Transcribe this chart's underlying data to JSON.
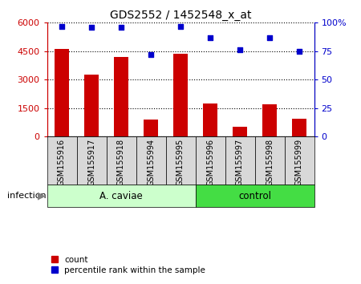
{
  "title": "GDS2552 / 1452548_x_at",
  "samples": [
    "GSM155916",
    "GSM155917",
    "GSM155918",
    "GSM155994",
    "GSM155995",
    "GSM155996",
    "GSM155997",
    "GSM155998",
    "GSM155999"
  ],
  "counts": [
    4600,
    3250,
    4200,
    900,
    4350,
    1750,
    500,
    1700,
    950
  ],
  "percentile_ranks": [
    97,
    96,
    96,
    72,
    97,
    87,
    76,
    87,
    75
  ],
  "bar_color": "#cc0000",
  "dot_color": "#0000cc",
  "left_ylim": [
    0,
    6000
  ],
  "right_ylim": [
    0,
    100
  ],
  "left_yticks": [
    0,
    1500,
    3000,
    4500,
    6000
  ],
  "right_yticks": [
    0,
    25,
    50,
    75,
    100
  ],
  "left_yticklabels": [
    "0",
    "1500",
    "3000",
    "4500",
    "6000"
  ],
  "right_yticklabels": [
    "0",
    "25",
    "50",
    "75",
    "100%"
  ],
  "acaviae_color_light": "#ccffcc",
  "control_color": "#44dd44",
  "xlabel_infection": "infection",
  "legend_count": "count",
  "legend_percentile": "percentile rank within the sample",
  "group_label_acaviae": "A. caviae",
  "group_label_control": "control",
  "n_acaviae": 5,
  "n_control": 4
}
